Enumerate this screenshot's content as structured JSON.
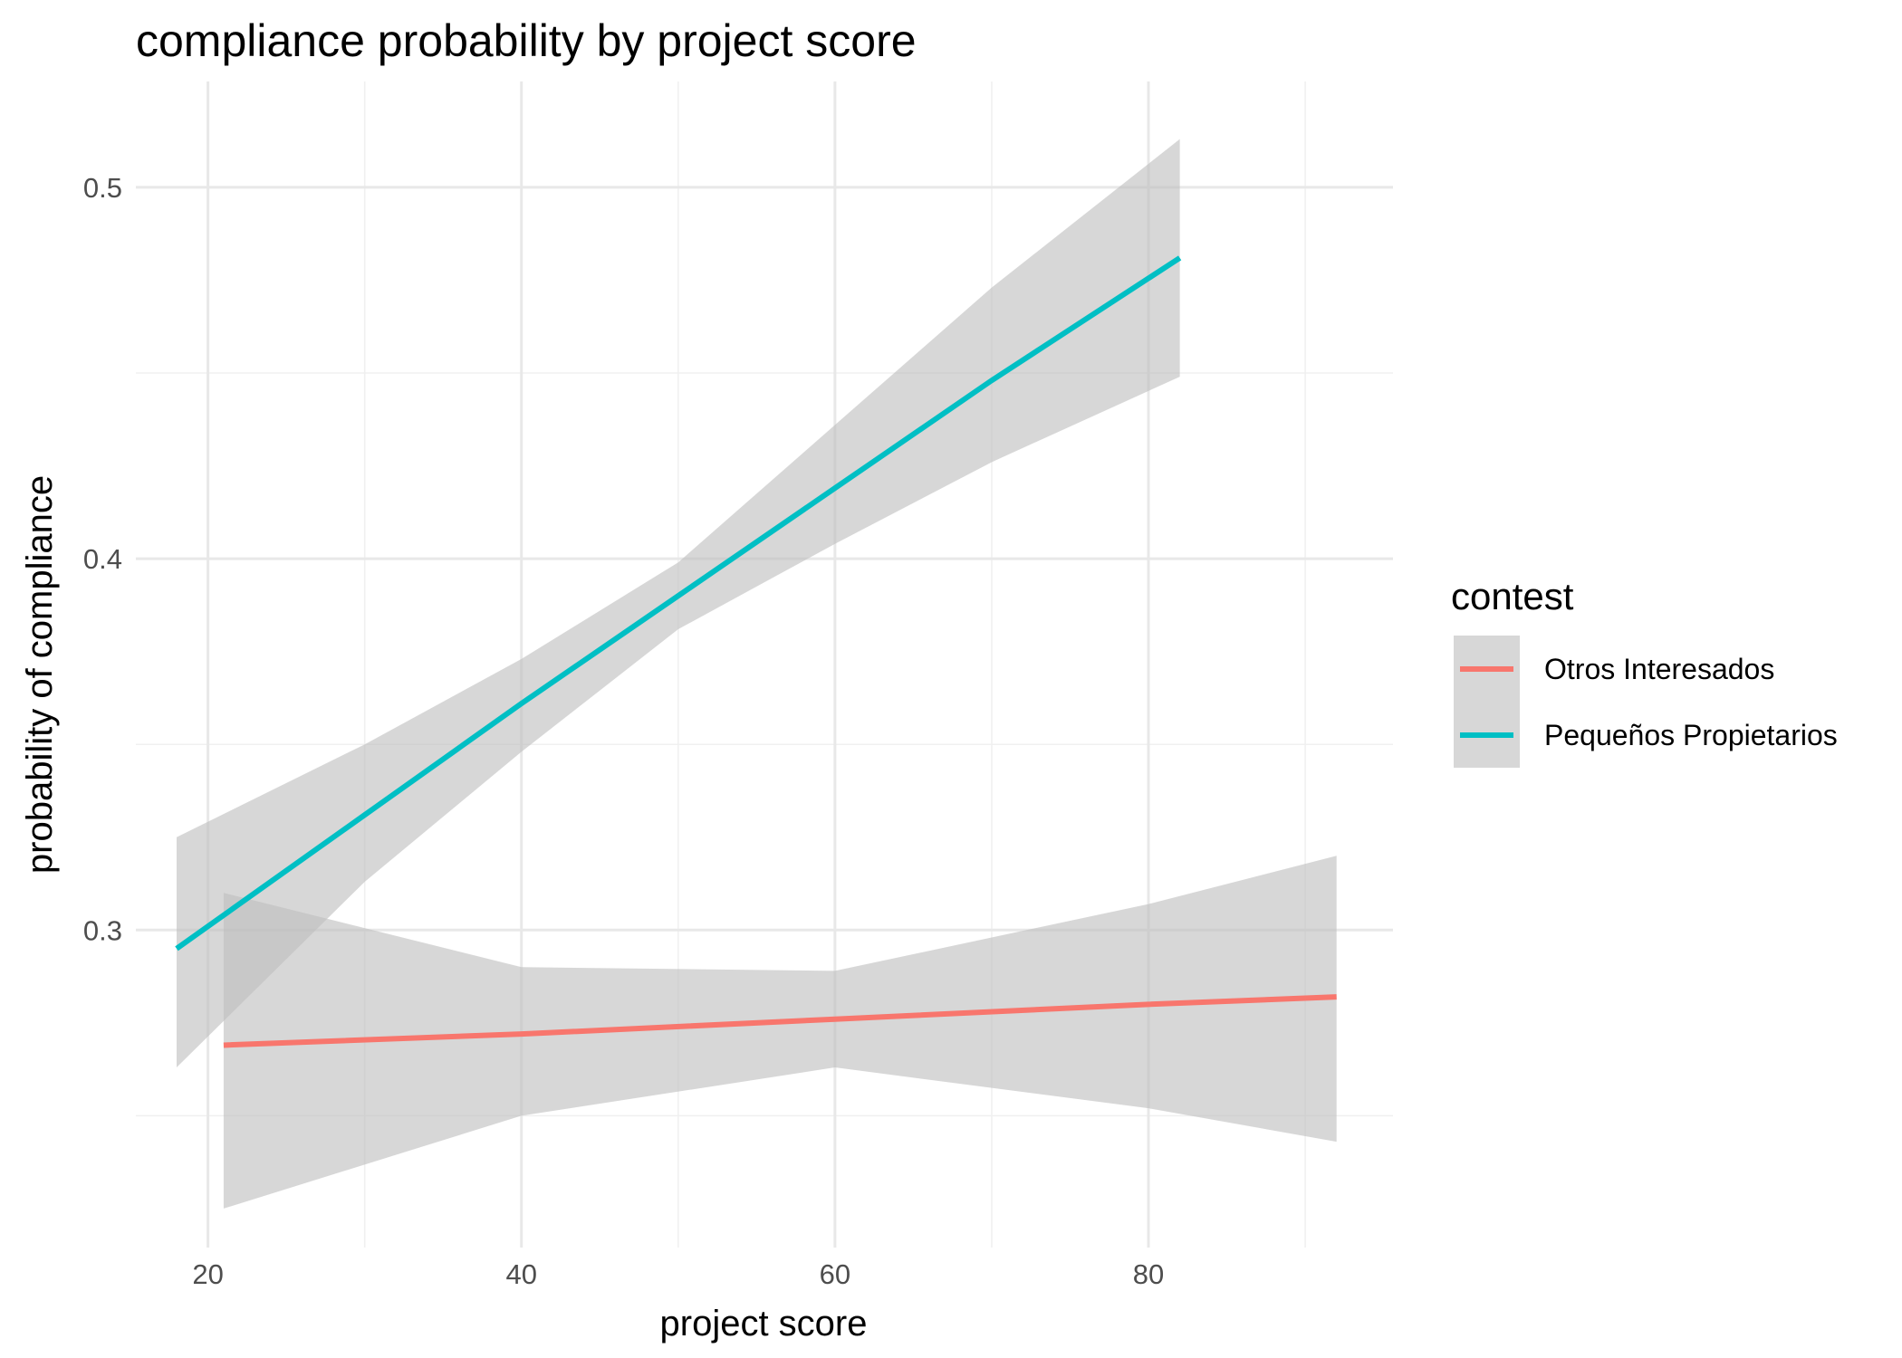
{
  "chart_data": {
    "type": "line",
    "title": "compliance probability by project score",
    "xlabel": "project score",
    "ylabel": "probability of compliance",
    "xlim": [
      15.4,
      95.6
    ],
    "ylim": [
      0.2145,
      0.5285
    ],
    "x_ticks": [
      20,
      40,
      60,
      80
    ],
    "y_ticks": [
      0.3,
      0.4,
      0.5
    ],
    "x_minor_ticks": [
      30,
      50,
      70,
      90
    ],
    "y_minor_ticks": [
      0.25,
      0.35,
      0.45
    ],
    "x_tick_labels": [
      "20",
      "40",
      "60",
      "80"
    ],
    "y_tick_labels": [
      "0.3",
      "0.4",
      "0.5"
    ],
    "grid": true,
    "legend": {
      "title": "contest",
      "position": "right"
    },
    "band_color": "#bfbfbf",
    "series": [
      {
        "name": "Otros Interesados",
        "color": "#F8766D",
        "x": [
          21,
          40,
          60,
          80,
          92
        ],
        "y": [
          0.269,
          0.272,
          0.276,
          0.28,
          0.282
        ],
        "ci_lower": [
          0.225,
          0.25,
          0.263,
          0.252,
          0.243
        ],
        "ci_upper": [
          0.31,
          0.29,
          0.289,
          0.307,
          0.32
        ]
      },
      {
        "name": "Pequeños Propietarios",
        "color": "#00BFC4",
        "x": [
          18,
          30,
          40,
          50,
          60,
          70,
          82
        ],
        "y": [
          0.295,
          0.331,
          0.361,
          0.39,
          0.419,
          0.448,
          0.481
        ],
        "ci_lower": [
          0.263,
          0.313,
          0.348,
          0.381,
          0.404,
          0.426,
          0.449
        ],
        "ci_upper": [
          0.325,
          0.35,
          0.373,
          0.399,
          0.436,
          0.473,
          0.513
        ]
      }
    ]
  }
}
